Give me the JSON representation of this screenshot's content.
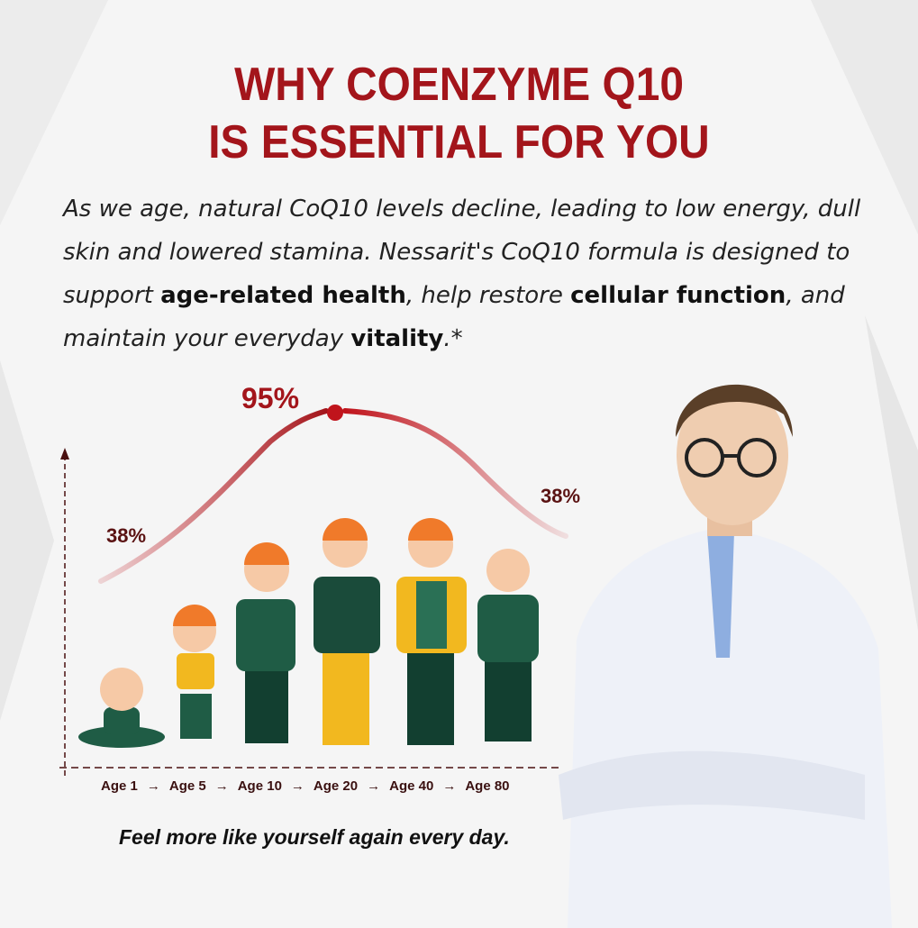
{
  "headline": {
    "line1": "WHY COENZYME Q10",
    "line2": "IS ESSENTIAL FOR YOU"
  },
  "intro": {
    "p1": "As we age, natural CoQ10 levels decline, leading to low energy, dull skin and lowered stamina. Nessarit's CoQ10 formula is designed to support ",
    "b1": "age-related health",
    "p2": ", help restore ",
    "b2": "cellular function",
    "p3": ", and maintain your everyday ",
    "b3": "vitality",
    "p4": ".*"
  },
  "curve": {
    "start_label": "38%",
    "peak_label": "95%",
    "end_label": "38%",
    "color": "#c0141c"
  },
  "ages": [
    "Age 1",
    "Age 5",
    "Age 10",
    "Age 20",
    "Age 40",
    "Age 80"
  ],
  "arrow": "→",
  "tagline": "Feel more like yourself again every day.",
  "colors": {
    "title": "#a3151b",
    "hair": "#f07a2a",
    "green": "#1f5c45",
    "yellow": "#f2b81f"
  }
}
